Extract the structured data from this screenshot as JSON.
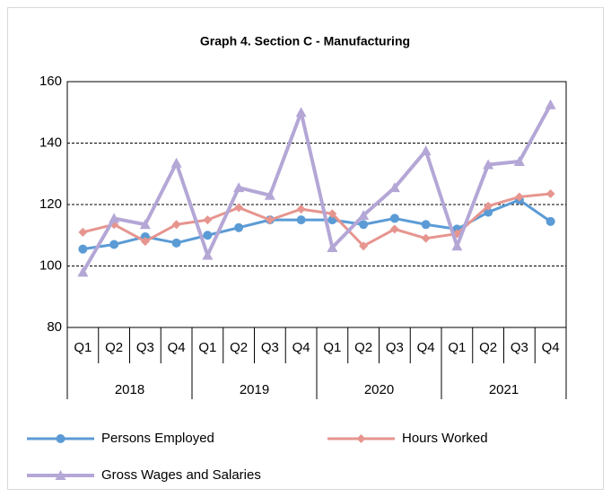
{
  "chart_data": {
    "type": "line",
    "title": "Graph 4. Section C - Manufacturing",
    "categories": [
      "Q1",
      "Q2",
      "Q3",
      "Q4",
      "Q1",
      "Q2",
      "Q3",
      "Q4",
      "Q1",
      "Q2",
      "Q3",
      "Q4",
      "Q1",
      "Q2",
      "Q3",
      "Q4"
    ],
    "category_groups": [
      "2018",
      "2019",
      "2020",
      "2021"
    ],
    "ylim": [
      80,
      160
    ],
    "yticks": [
      80,
      100,
      120,
      140,
      160
    ],
    "grid": true,
    "series": [
      {
        "name": "Persons Employed",
        "color": "#5b9bd5",
        "marker": "circle",
        "values": [
          105.5,
          107,
          109.5,
          107.5,
          110,
          112.5,
          115,
          115,
          115,
          113.5,
          115.5,
          113.5,
          112,
          117.5,
          121.5,
          114.5
        ]
      },
      {
        "name": "Hours Worked",
        "color": "#e6958f",
        "marker": "diamond",
        "values": [
          111,
          113.5,
          108,
          113.5,
          115,
          119,
          115,
          118.5,
          117,
          106.5,
          112,
          109,
          110.5,
          119.5,
          122.5,
          123.5
        ]
      },
      {
        "name": "Gross Wages and Salaries",
        "color": "#b4a7d6",
        "marker": "triangle",
        "values": [
          98,
          115.5,
          113.5,
          133.5,
          103.5,
          125.5,
          123,
          150,
          106,
          116.5,
          125.5,
          137.5,
          106.5,
          133,
          134,
          152.5
        ]
      }
    ]
  }
}
